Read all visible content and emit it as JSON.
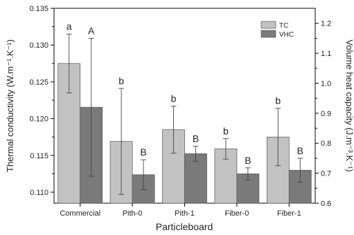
{
  "chart_data": {
    "type": "bar",
    "categories": [
      "Commercial",
      "Pith-0",
      "Pith-1",
      "Fiber-0",
      "Fiber-1"
    ],
    "series": [
      {
        "name": "TC",
        "axis": "left",
        "values": [
          0.1275,
          0.1169,
          0.1185,
          0.1159,
          0.1175
        ],
        "errors": [
          0.004,
          0.0072,
          0.0032,
          0.0014,
          0.0039
        ],
        "letters": [
          "a",
          "b",
          "b",
          "b",
          "b"
        ],
        "color": "#c2c2c2"
      },
      {
        "name": "VHC",
        "axis": "right",
        "values": [
          0.92,
          0.695,
          0.765,
          0.698,
          0.71
        ],
        "errors": [
          0.23,
          0.05,
          0.025,
          0.02,
          0.04
        ],
        "letters": [
          "A",
          "B",
          "B",
          "B",
          "B"
        ],
        "color": "#7a7a7a"
      }
    ],
    "xlabel": "Particleboard",
    "ylabel_left": "Thermal conductivity (W.m⁻¹.K⁻¹)",
    "ylabel_right": "Volume heat capacity (J.m⁻³.K⁻¹)",
    "ylim_left": [
      0.1085,
      0.135
    ],
    "yticks_left": [
      "0.110",
      "0.115",
      "0.120",
      "0.125",
      "0.130",
      "0.135"
    ],
    "ylim_right": [
      0.6,
      1.25
    ],
    "yticks_right": [
      "0.6",
      "0.7",
      "0.8",
      "0.9",
      "1.0",
      "1.1",
      "1.2"
    ],
    "legend": "top-right",
    "grid": false
  }
}
